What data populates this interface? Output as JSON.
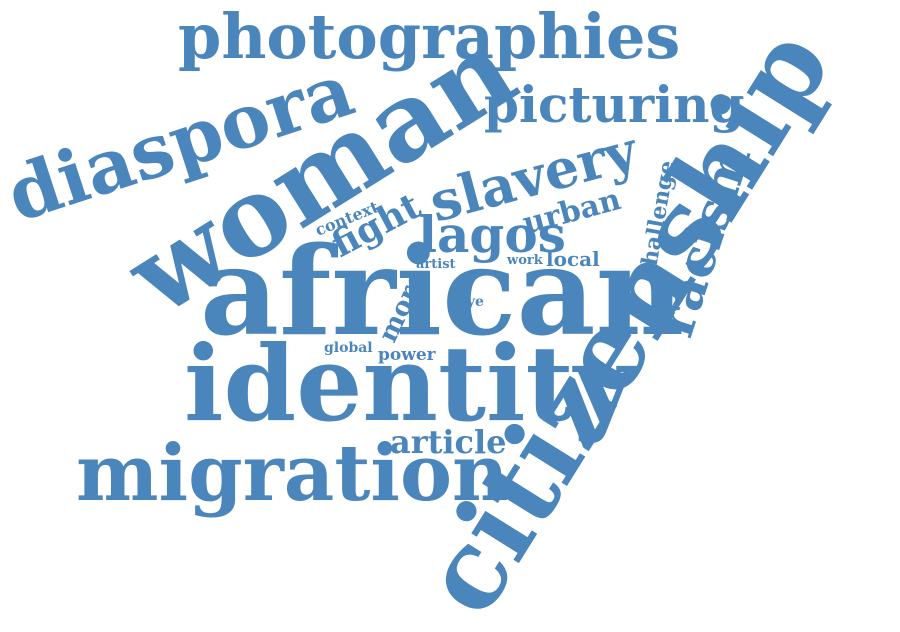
{
  "color": "#4a86bb",
  "words": [
    "photographies",
    "diaspora",
    "woman",
    "picturing",
    "slavery",
    "challenge",
    "racism",
    "citizenship",
    "african",
    "identity",
    "migration",
    "lagos",
    "urban",
    "fight",
    "article",
    "context",
    "local",
    "work",
    "artist",
    "eye",
    "more",
    "global",
    "power"
  ]
}
